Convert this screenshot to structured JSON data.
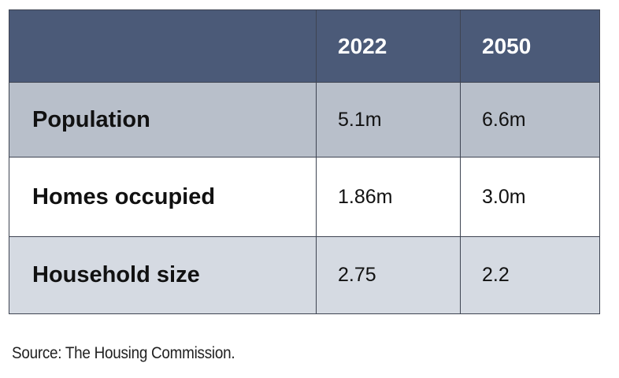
{
  "table": {
    "headers": [
      "",
      "2022",
      "2050"
    ],
    "rows": [
      {
        "label": "Population",
        "values": [
          "5.1m",
          "6.6m"
        ]
      },
      {
        "label": "Homes occupied",
        "values": [
          "1.86m",
          "3.0m"
        ]
      },
      {
        "label": "Household size",
        "values": [
          "2.75",
          "2.2"
        ]
      }
    ]
  },
  "source": "Source: The Housing Commission.",
  "colors": {
    "header_bg": "#4b5a78",
    "row1_bg": "#b8bfca",
    "row2_bg": "#ffffff",
    "row3_bg": "#d5dae2",
    "border": "#3e4452"
  }
}
